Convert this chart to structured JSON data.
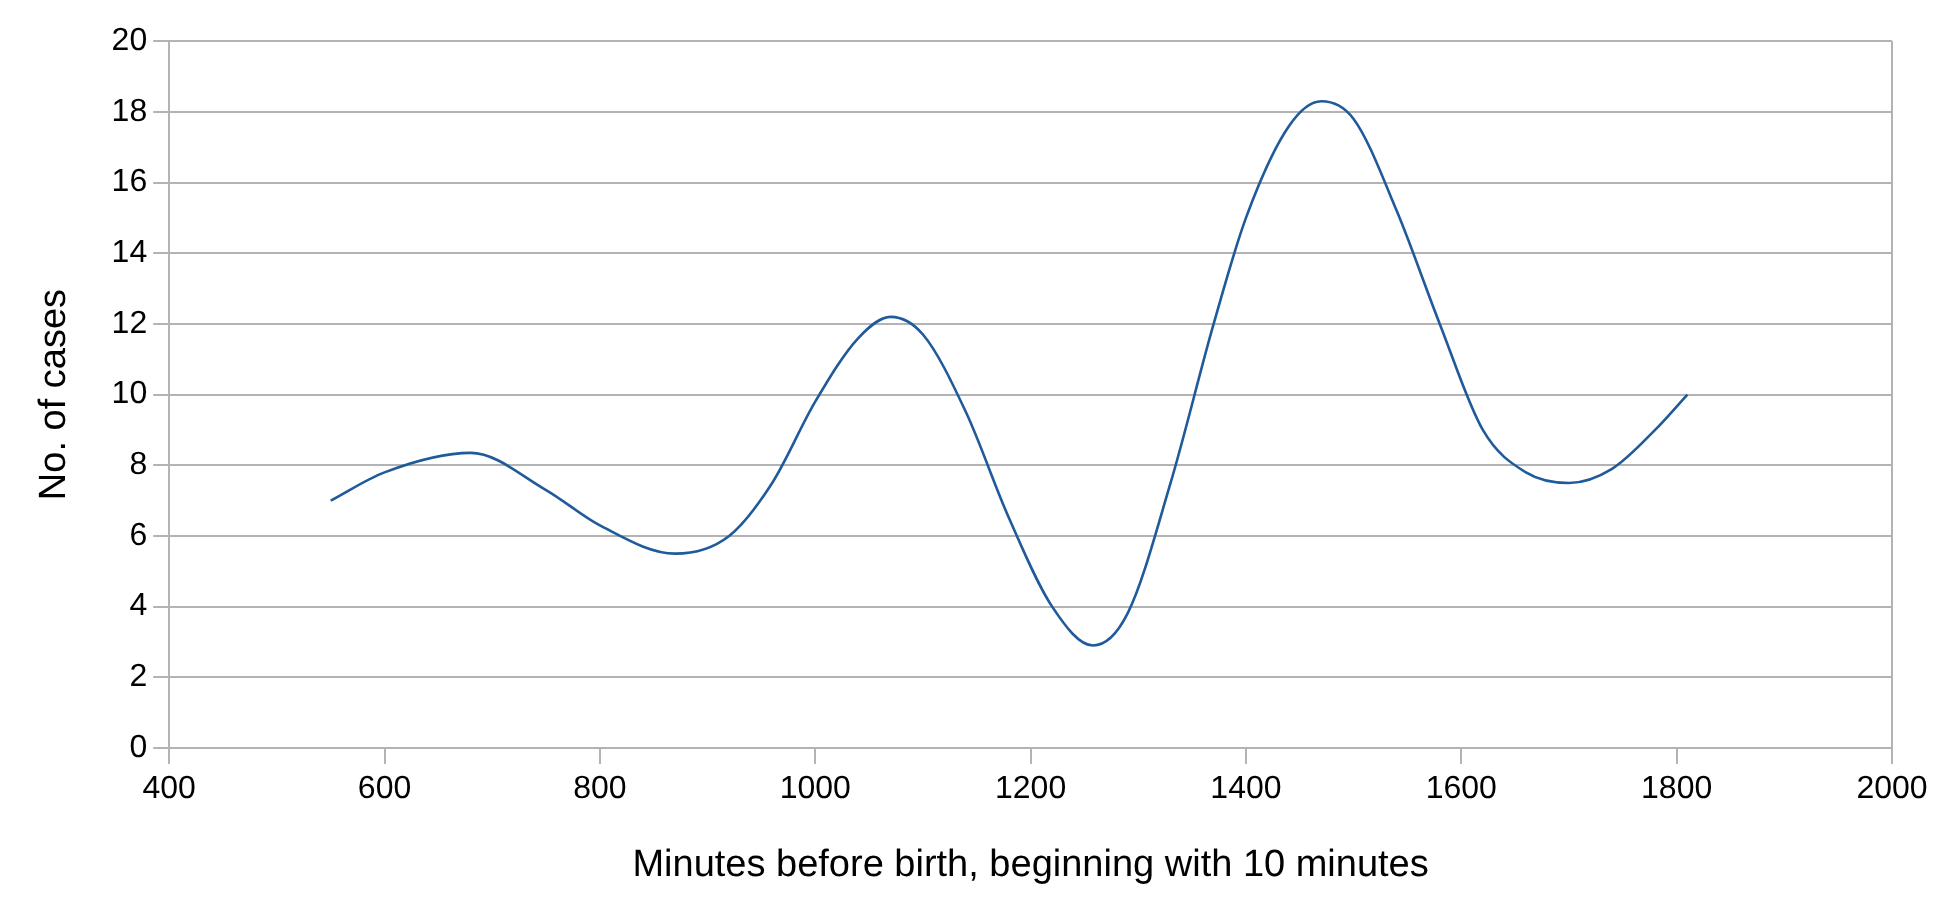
{
  "chart_data": {
    "type": "line",
    "xlabel": "Minutes before birth, beginning with 10 minutes",
    "ylabel": "No. of cases",
    "x": [
      550,
      600,
      680,
      750,
      800,
      870,
      920,
      960,
      1000,
      1040,
      1070,
      1100,
      1140,
      1180,
      1220,
      1258,
      1290,
      1330,
      1370,
      1400,
      1440,
      1470,
      1500,
      1540,
      1580,
      1620,
      1660,
      1700,
      1740,
      1780,
      1810
    ],
    "series": [
      {
        "color": "#1f5a9a",
        "values": [
          7.0,
          7.8,
          8.35,
          7.3,
          6.3,
          5.5,
          6.0,
          7.5,
          9.8,
          11.6,
          12.2,
          11.7,
          9.5,
          6.5,
          4.0,
          2.9,
          3.8,
          7.5,
          12.0,
          15.0,
          17.6,
          18.3,
          17.8,
          15.2,
          12.0,
          9.0,
          7.8,
          7.5,
          7.9,
          9.0,
          10.0
        ]
      }
    ],
    "xlim": [
      400,
      2000
    ],
    "xticks": [
      400,
      600,
      800,
      1000,
      1200,
      1400,
      1600,
      1800,
      2000
    ],
    "ylim": [
      0,
      20
    ],
    "yticks": [
      0,
      2,
      4,
      6,
      8,
      10,
      12,
      14,
      16,
      18,
      20
    ],
    "grid": "y",
    "legend": false,
    "marker": "none",
    "line_style": "solid"
  }
}
